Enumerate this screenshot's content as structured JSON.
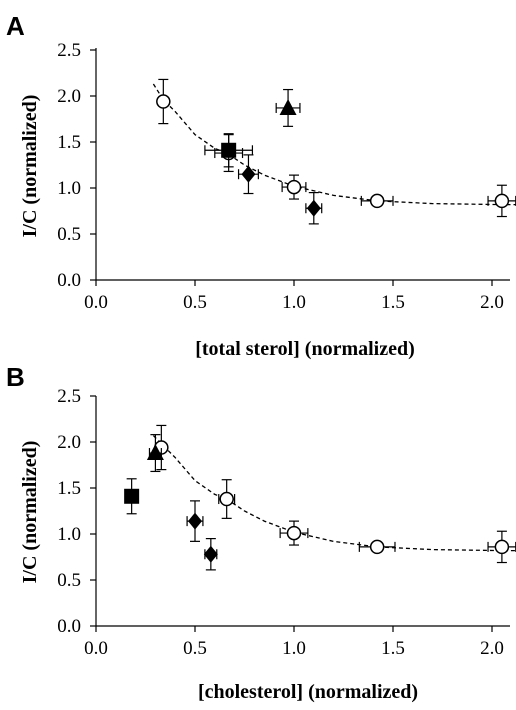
{
  "colors": {
    "ink": "#000000",
    "background": "#ffffff",
    "open_marker_fill": "#ffffff"
  },
  "chart_data": [
    {
      "type": "scatter",
      "panel_label": "A",
      "xlabel": "[total sterol] (normalized)",
      "ylabel": "I/C (normalized)",
      "xlim": [
        0,
        2.0
      ],
      "ylim": [
        0,
        2.5
      ],
      "xticks": [
        "0.0",
        "0.5",
        "1.0",
        "1.5",
        "2.0"
      ],
      "yticks": [
        "0.0",
        "0.5",
        "1.0",
        "1.5",
        "2.0",
        "2.5"
      ],
      "grid": false,
      "legend": "none",
      "fit_curve": {
        "style": "dashed",
        "points": [
          [
            0.29,
            2.13
          ],
          [
            0.34,
            1.96
          ],
          [
            0.4,
            1.83
          ],
          [
            0.5,
            1.58
          ],
          [
            0.6,
            1.43
          ],
          [
            0.66,
            1.38
          ],
          [
            0.75,
            1.25
          ],
          [
            0.85,
            1.14
          ],
          [
            1.0,
            1.02
          ],
          [
            1.2,
            0.92
          ],
          [
            1.42,
            0.86
          ],
          [
            1.7,
            0.83
          ],
          [
            2.05,
            0.82
          ],
          [
            2.12,
            0.82
          ]
        ]
      },
      "series": [
        {
          "marker": "open-circle",
          "points": [
            {
              "x": 0.34,
              "y": 1.94,
              "yerr": 0.24,
              "xerr": 0
            },
            {
              "x": 0.67,
              "y": 1.38,
              "yerr": 0.2,
              "xerr": 0.07
            },
            {
              "x": 1.0,
              "y": 1.01,
              "yerr": 0.13,
              "xerr": 0.06
            },
            {
              "x": 1.42,
              "y": 0.86,
              "yerr": 0.03,
              "xerr": 0.08
            },
            {
              "x": 2.05,
              "y": 0.86,
              "yerr": 0.17,
              "xerr": 0.07
            }
          ]
        },
        {
          "marker": "filled-square",
          "points": [
            {
              "x": 0.67,
              "y": 1.41,
              "yerr": 0.18,
              "xerr": 0.12
            }
          ]
        },
        {
          "marker": "filled-triangle",
          "points": [
            {
              "x": 0.97,
              "y": 1.87,
              "yerr": 0.2,
              "xerr": 0.06
            }
          ]
        },
        {
          "marker": "filled-diamond",
          "points": [
            {
              "x": 0.77,
              "y": 1.15,
              "yerr": 0.21,
              "xerr": 0.05
            },
            {
              "x": 1.1,
              "y": 0.78,
              "yerr": 0.17,
              "xerr": 0.04
            }
          ]
        }
      ]
    },
    {
      "type": "scatter",
      "panel_label": "B",
      "xlabel": "[cholesterol] (normalized)",
      "ylabel": "I/C (normalized)",
      "xlim": [
        0,
        2.0
      ],
      "ylim": [
        0,
        2.5
      ],
      "xticks": [
        "0.0",
        "0.5",
        "1.0",
        "1.5",
        "2.0"
      ],
      "yticks": [
        "0.0",
        "0.5",
        "1.0",
        "1.5",
        "2.0",
        "2.5"
      ],
      "grid": false,
      "legend": "none",
      "fit_curve": {
        "style": "dashed",
        "points": [
          [
            0.29,
            2.07
          ],
          [
            0.34,
            1.96
          ],
          [
            0.4,
            1.83
          ],
          [
            0.5,
            1.58
          ],
          [
            0.6,
            1.43
          ],
          [
            0.66,
            1.38
          ],
          [
            0.75,
            1.25
          ],
          [
            0.85,
            1.14
          ],
          [
            1.0,
            1.02
          ],
          [
            1.2,
            0.92
          ],
          [
            1.42,
            0.86
          ],
          [
            1.7,
            0.83
          ],
          [
            2.05,
            0.82
          ],
          [
            2.12,
            0.82
          ]
        ]
      },
      "series": [
        {
          "marker": "open-circle",
          "points": [
            {
              "x": 0.33,
              "y": 1.94,
              "yerr": 0.24,
              "xerr": 0.02
            },
            {
              "x": 0.66,
              "y": 1.38,
              "yerr": 0.21,
              "xerr": 0.04
            },
            {
              "x": 1.0,
              "y": 1.01,
              "yerr": 0.13,
              "xerr": 0.07
            },
            {
              "x": 1.42,
              "y": 0.86,
              "yerr": 0.03,
              "xerr": 0.09
            },
            {
              "x": 2.05,
              "y": 0.86,
              "yerr": 0.17,
              "xerr": 0.07
            }
          ]
        },
        {
          "marker": "filled-square",
          "points": [
            {
              "x": 0.18,
              "y": 1.41,
              "yerr": 0.19,
              "xerr": 0
            }
          ]
        },
        {
          "marker": "filled-triangle",
          "points": [
            {
              "x": 0.3,
              "y": 1.88,
              "yerr": 0.2,
              "xerr": 0.03
            }
          ]
        },
        {
          "marker": "filled-diamond",
          "points": [
            {
              "x": 0.5,
              "y": 1.14,
              "yerr": 0.22,
              "xerr": 0.04
            },
            {
              "x": 0.58,
              "y": 0.78,
              "yerr": 0.17,
              "xerr": 0.03
            }
          ]
        }
      ]
    }
  ]
}
